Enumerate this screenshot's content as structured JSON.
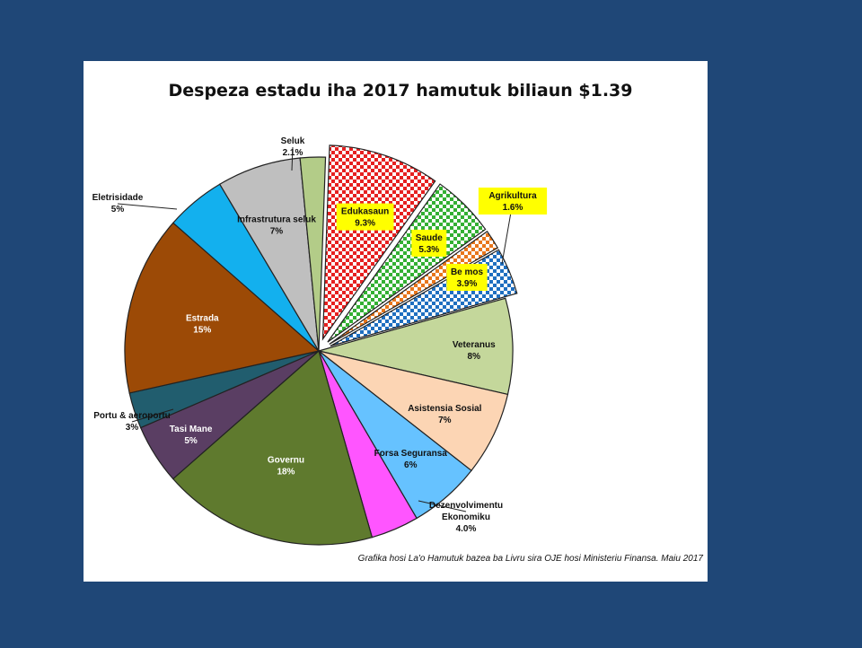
{
  "chart_data": {
    "type": "pie",
    "title": "Despeza estadu iha 2017 hamutuk biliaun $1.39",
    "source": "Grafika hosi La'o Hamutuk bazea ba Livru sira OJE hosi Ministeriu Finansa. Maiu 2017",
    "slices": [
      {
        "name": "Edukasaun",
        "pct_label": "9.3%",
        "value": 9.3,
        "color": "#e62020",
        "pattern": "checker",
        "exploded": true,
        "highlight": true
      },
      {
        "name": "Saude",
        "pct_label": "5.3%",
        "value": 5.3,
        "color": "#33b033",
        "pattern": "checker",
        "exploded": true,
        "highlight": true
      },
      {
        "name": "Agrikultura",
        "pct_label": "1.6%",
        "value": 1.6,
        "color": "#e8761c",
        "pattern": "checker",
        "exploded": true,
        "highlight": true
      },
      {
        "name": "Be mos",
        "pct_label": "3.9%",
        "value": 3.9,
        "color": "#1f6fc0",
        "pattern": "checker",
        "exploded": true,
        "highlight": true
      },
      {
        "name": "Veteranus",
        "pct_label": "8%",
        "value": 8,
        "color": "#c4d79b",
        "pattern": "solid"
      },
      {
        "name": "Asistensia Sosial",
        "pct_label": "7%",
        "value": 7,
        "color": "#fcd5b4",
        "pattern": "solid"
      },
      {
        "name": "Forsa Seguransa",
        "pct_label": "6%",
        "value": 6,
        "color": "#66c2ff",
        "pattern": "solid"
      },
      {
        "name": "Dezenvolvimentu Ekonomiku",
        "pct_label": "4.0%",
        "value": 4.0,
        "color": "#ff55ff",
        "pattern": "solid"
      },
      {
        "name": "Governu",
        "pct_label": "18%",
        "value": 18,
        "color": "#5f7a2e",
        "pattern": "solid",
        "light_text": true
      },
      {
        "name": "Tasi Mane",
        "pct_label": "5%",
        "value": 5,
        "color": "#5a3e63",
        "pattern": "solid",
        "light_text": true
      },
      {
        "name": "Portu & aeroportu",
        "pct_label": "3%",
        "value": 3,
        "color": "#215d6e",
        "pattern": "solid"
      },
      {
        "name": "Estrada",
        "pct_label": "15%",
        "value": 15,
        "color": "#9c4a06",
        "pattern": "solid",
        "light_text": true
      },
      {
        "name": "Eletrisidade",
        "pct_label": "5%",
        "value": 5,
        "color": "#13b0ee",
        "pattern": "solid"
      },
      {
        "name": "Infrastrutura seluk",
        "pct_label": "7%",
        "value": 7,
        "color": "#bfbfbf",
        "pattern": "solid"
      },
      {
        "name": "Seluk",
        "pct_label": "2.1%",
        "value": 2.1,
        "color": "#b3cc88",
        "pattern": "solid"
      }
    ],
    "highlight_label_bg": "#ffff00",
    "legend": "none"
  }
}
